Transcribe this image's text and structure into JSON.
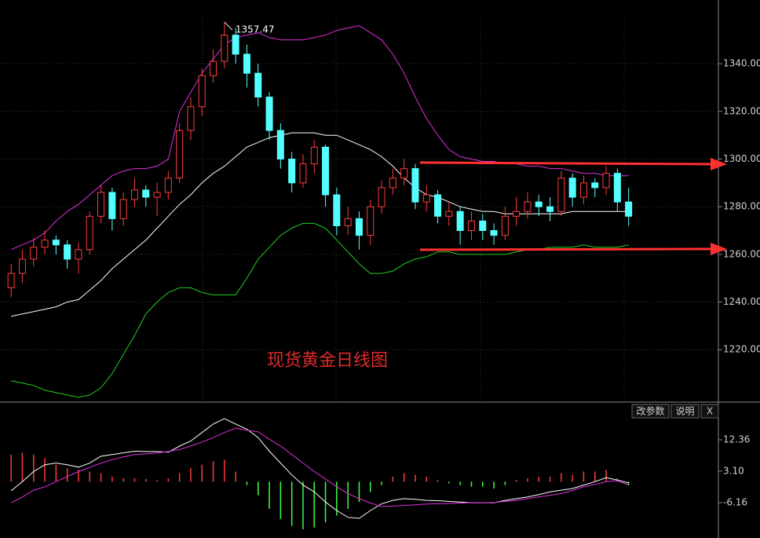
{
  "chart_data": [
    {
      "type": "candlestick",
      "title": "现货黄金日线图",
      "annotation": "1357.47",
      "ylim": [
        1198,
        1358.5
      ],
      "yticks": [
        {
          "value": 1220,
          "label": "1220.00"
        },
        {
          "value": 1240,
          "label": "1240.00"
        },
        {
          "value": 1260,
          "label": "1260.00"
        },
        {
          "value": 1280,
          "label": "1280.00"
        },
        {
          "value": 1300,
          "label": "1300.00"
        },
        {
          "value": 1320,
          "label": "1320.00"
        },
        {
          "value": 1340,
          "label": "1340.00"
        }
      ],
      "grid": true,
      "up_color": "#ff3c3c",
      "down_color": "#54ffff",
      "open": [
        1246,
        1252,
        1258,
        1263,
        1266,
        1264,
        1258,
        1262,
        1276,
        1286,
        1275,
        1283,
        1287,
        1284,
        1286,
        1292,
        1312,
        1322,
        1335,
        1341,
        1352,
        1344,
        1336,
        1326,
        1312,
        1300,
        1290,
        1298,
        1305,
        1285,
        1272,
        1275,
        1268,
        1280,
        1288,
        1292,
        1296,
        1282,
        1285,
        1276,
        1278,
        1270,
        1274,
        1270,
        1268,
        1276,
        1278,
        1282,
        1280,
        1278,
        1292,
        1284,
        1290,
        1288,
        1294,
        1282
      ],
      "high": [
        1256,
        1262,
        1267,
        1270,
        1268,
        1266,
        1265,
        1278,
        1289,
        1288,
        1286,
        1292,
        1289,
        1290,
        1295,
        1315,
        1326,
        1338,
        1346,
        1357.47,
        1355,
        1348,
        1340,
        1328,
        1315,
        1303,
        1302,
        1308,
        1306,
        1288,
        1280,
        1278,
        1283,
        1291,
        1296,
        1300,
        1298,
        1289,
        1287,
        1282,
        1280,
        1278,
        1277,
        1273,
        1280,
        1284,
        1286,
        1285,
        1284,
        1295,
        1294,
        1293,
        1292,
        1297,
        1296,
        1288
      ],
      "low": [
        1242,
        1248,
        1255,
        1260,
        1260,
        1254,
        1252,
        1260,
        1273,
        1270,
        1272,
        1280,
        1280,
        1276,
        1283,
        1290,
        1308,
        1318,
        1332,
        1338,
        1340,
        1330,
        1322,
        1308,
        1296,
        1286,
        1288,
        1294,
        1280,
        1268,
        1268,
        1262,
        1264,
        1277,
        1285,
        1289,
        1279,
        1278,
        1273,
        1272,
        1264,
        1266,
        1266,
        1264,
        1266,
        1272,
        1275,
        1276,
        1274,
        1276,
        1280,
        1281,
        1284,
        1285,
        1278,
        1272
      ],
      "close": [
        1252,
        1258,
        1263,
        1266,
        1264,
        1258,
        1262,
        1276,
        1286,
        1275,
        1283,
        1287,
        1284,
        1286,
        1292,
        1312,
        1322,
        1335,
        1341,
        1352,
        1344,
        1336,
        1326,
        1312,
        1300,
        1290,
        1298,
        1305,
        1285,
        1272,
        1275,
        1268,
        1280,
        1288,
        1292,
        1296,
        1282,
        1285,
        1276,
        1278,
        1270,
        1274,
        1270,
        1268,
        1276,
        1278,
        1282,
        1280,
        1278,
        1292,
        1284,
        1290,
        1288,
        1294,
        1282,
        1276
      ],
      "lines": [
        {
          "color": "#e030e0",
          "values": [
            1262,
            1264,
            1266,
            1269,
            1274,
            1278,
            1281,
            1285,
            1289,
            1293,
            1295,
            1296,
            1296,
            1297,
            1300,
            1320,
            1328,
            1336,
            1342,
            1348,
            1351,
            1352,
            1353,
            1351,
            1350,
            1350,
            1350,
            1351,
            1352,
            1354,
            1355,
            1356,
            1353,
            1350,
            1344,
            1336,
            1326,
            1317,
            1310,
            1304,
            1301,
            1300,
            1299,
            1299,
            1298,
            1298,
            1297,
            1297,
            1296,
            1296,
            1295,
            1294,
            1294,
            1293,
            1293,
            1293
          ]
        },
        {
          "color": "#ffffff",
          "values": [
            1234,
            1235,
            1236,
            1237,
            1238,
            1240,
            1241,
            1245,
            1249,
            1254,
            1258,
            1262,
            1266,
            1271,
            1276,
            1281,
            1285,
            1290,
            1294,
            1297,
            1301,
            1305,
            1307,
            1309,
            1310,
            1311,
            1311,
            1311,
            1310,
            1310,
            1308,
            1306,
            1304,
            1301,
            1297,
            1292,
            1288,
            1285,
            1284,
            1282,
            1280,
            1279,
            1278,
            1278,
            1277,
            1277,
            1277,
            1277,
            1277,
            1277,
            1278,
            1278,
            1278,
            1278,
            1278,
            1278
          ]
        },
        {
          "color": "#20d020",
          "values": [
            1207,
            1206,
            1205,
            1203,
            1202,
            1201,
            1200,
            1201,
            1204,
            1210,
            1218,
            1226,
            1235,
            1240,
            1244,
            1246,
            1246,
            1244,
            1243,
            1243,
            1243,
            1250,
            1258,
            1263,
            1268,
            1271,
            1273,
            1273,
            1271,
            1266,
            1261,
            1256,
            1252,
            1252,
            1253,
            1256,
            1258,
            1259,
            1261,
            1261,
            1260,
            1260,
            1260,
            1260,
            1260,
            1261,
            1262,
            1262,
            1263,
            1263,
            1263,
            1264,
            1263,
            1263,
            1263,
            1264
          ]
        }
      ]
    },
    {
      "type": "macd",
      "buttons": [
        "改参数",
        "说明",
        "X"
      ],
      "ylim": [
        -16.6,
        18.6
      ],
      "yticks": [
        {
          "value": 12.36,
          "label": "12.36"
        },
        {
          "value": 3.1,
          "label": "3.10"
        },
        {
          "value": -6.16,
          "label": "-6.16"
        }
      ],
      "up_color": "#ff3c3c",
      "down_color": "#40ff40",
      "values": [
        8,
        8.5,
        8,
        7,
        5,
        4,
        3.5,
        3,
        2.5,
        1.5,
        1,
        1,
        0.8,
        0.5,
        1,
        2.5,
        4,
        5,
        6,
        6.5,
        3,
        -1,
        -4,
        -8,
        -11,
        -13,
        -14,
        -13.5,
        -12,
        -10,
        -8,
        -6,
        -3,
        -1,
        1.5,
        2.5,
        2,
        1.5,
        0.5,
        -0.5,
        -1,
        -1.5,
        -1.5,
        -2,
        -1,
        0.5,
        1,
        1.5,
        1.5,
        2.5,
        2,
        3,
        3,
        3.5,
        1,
        -1
      ],
      "lines": [
        {
          "color": "#ffffff",
          "values": [
            -2.7,
            0,
            3,
            5,
            5.5,
            5,
            4.3,
            5.5,
            7.5,
            8,
            8.5,
            9,
            8.9,
            8.9,
            8.7,
            10.5,
            12,
            14.5,
            17,
            18.6,
            17,
            15.5,
            13,
            9,
            5.5,
            2,
            -1,
            -3,
            -6,
            -8.5,
            -10.5,
            -10.8,
            -8.5,
            -6.5,
            -5.5,
            -5,
            -5.2,
            -5.5,
            -5.6,
            -5.8,
            -6,
            -6.2,
            -6.2,
            -6.2,
            -5.5,
            -5,
            -4.5,
            -3.8,
            -3,
            -2.5,
            -2,
            -1,
            0,
            1.2,
            0.5,
            -0.4
          ]
        },
        {
          "color": "#e030e0",
          "values": [
            -6.2,
            -4.5,
            -2.5,
            -1.5,
            0,
            1.5,
            3,
            4.2,
            5.5,
            6.5,
            7.3,
            8,
            8.2,
            8.5,
            8.9,
            9.5,
            10.5,
            11.7,
            13,
            14.5,
            15.8,
            15.2,
            14.7,
            12.5,
            10.5,
            8,
            5.5,
            3,
            0.8,
            -1.5,
            -3.5,
            -5,
            -6.3,
            -7.3,
            -7.2,
            -7,
            -6.8,
            -6.6,
            -6.5,
            -6.4,
            -6.3,
            -6.2,
            -6.2,
            -6.1,
            -5.8,
            -5.5,
            -5,
            -4.5,
            -4,
            -3.5,
            -2.6,
            -1.5,
            -0.8,
            0,
            0.3,
            -1
          ]
        }
      ]
    }
  ]
}
